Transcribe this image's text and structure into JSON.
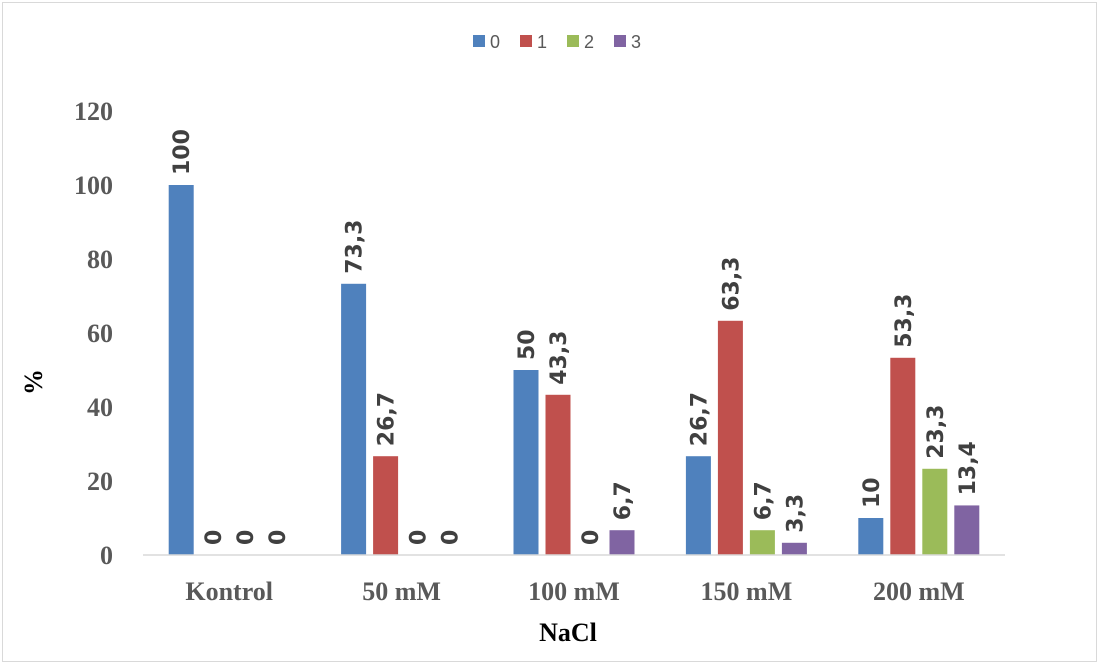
{
  "chart_data": {
    "type": "bar",
    "title": "",
    "xlabel": "NaCl",
    "ylabel": "%",
    "ylim": [
      0,
      120
    ],
    "yticks": [
      "0",
      "20",
      "40",
      "60",
      "80",
      "100",
      "120"
    ],
    "grid": false,
    "legend_position": "top",
    "categories": [
      "Kontrol",
      "50 mM",
      "100 mM",
      "150 mM",
      "200 mM"
    ],
    "series": [
      {
        "name": "0",
        "color": "#4f81bd",
        "values": [
          100,
          73.3,
          50,
          26.7,
          10
        ],
        "labels": [
          "100",
          "73,3",
          "50",
          "26,7",
          "10"
        ]
      },
      {
        "name": "1",
        "color": "#c0504d",
        "values": [
          0,
          26.7,
          43.3,
          63.3,
          53.3
        ],
        "labels": [
          "0",
          "26,7",
          "43,3",
          "63,3",
          "53,3"
        ]
      },
      {
        "name": "2",
        "color": "#9bbb59",
        "values": [
          0,
          0,
          0,
          6.7,
          23.3
        ],
        "labels": [
          "0",
          "0",
          "0",
          "6,7",
          "23,3"
        ]
      },
      {
        "name": "3",
        "color": "#8064a2",
        "values": [
          0,
          0,
          6.7,
          3.3,
          13.4
        ],
        "labels": [
          "0",
          "0",
          "6,7",
          "3,3",
          "13,4"
        ]
      }
    ]
  }
}
